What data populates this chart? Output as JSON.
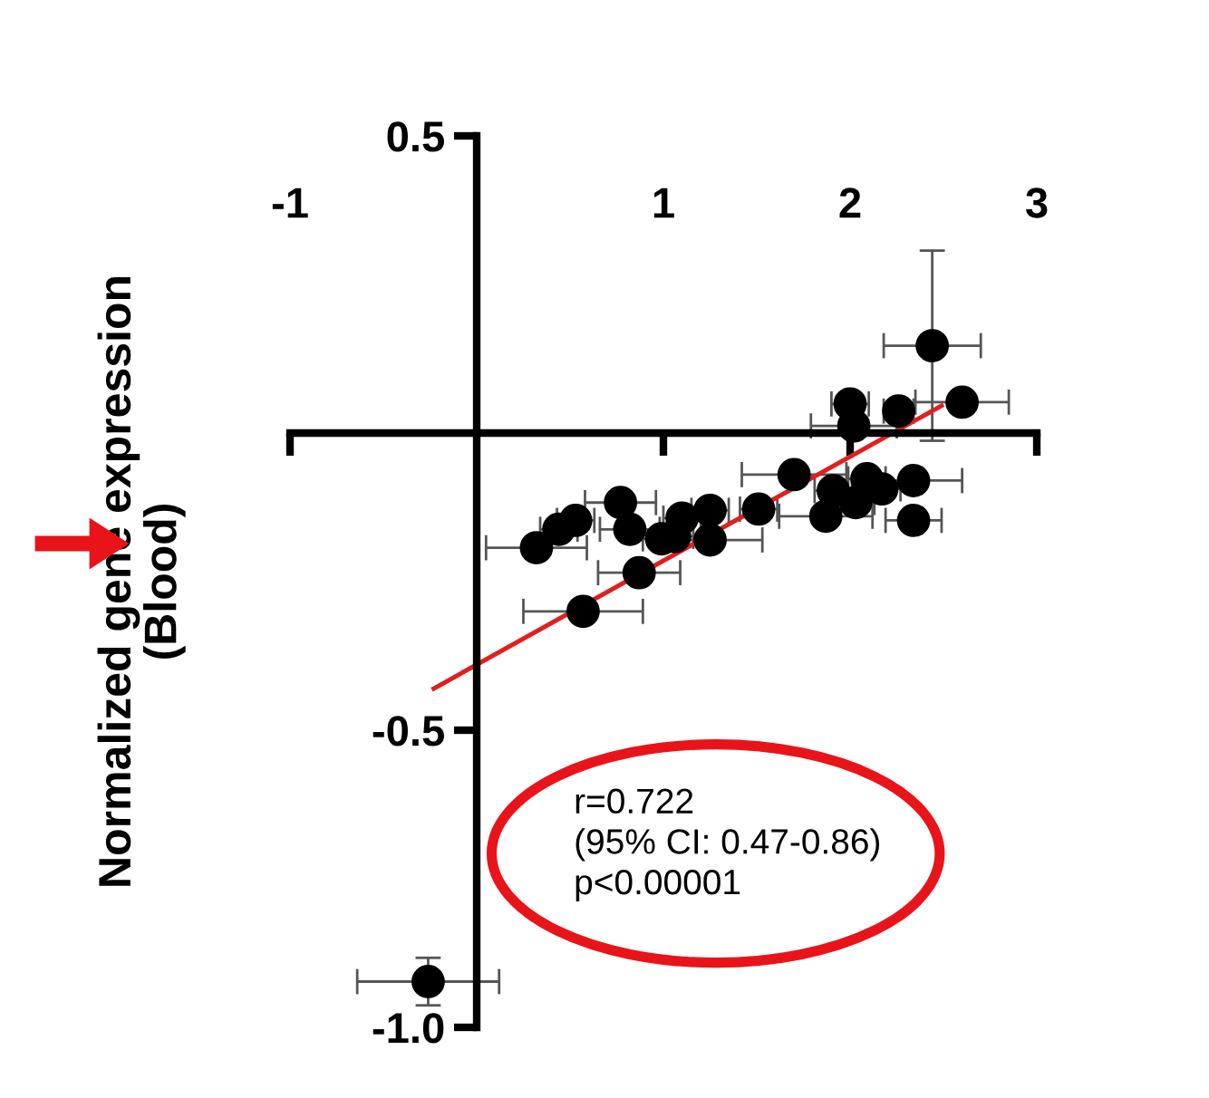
{
  "chart_data": {
    "type": "scatter",
    "ylabel": "Normalized gene expression\n(Blood)",
    "xlim": [
      -1,
      3
    ],
    "xticks": [
      -1,
      1,
      2,
      3
    ],
    "ylim": [
      -1,
      0.5
    ],
    "yticks": [
      0.5,
      -0.5,
      {
        "value": -1,
        "label": "-1.0"
      }
    ],
    "grid": false,
    "marker": "circle",
    "series": [
      {
        "color": "#000000",
        "x": [
          2.44,
          2.6,
          2.0,
          2.02,
          2.26,
          1.7,
          1.91,
          2.09,
          2.17,
          2.34,
          2.03,
          1.87,
          2.34,
          1.51,
          1.25,
          1.25,
          1.1,
          0.99,
          1.06,
          0.82,
          0.77,
          0.53,
          0.44,
          0.32,
          0.87,
          0.57,
          -0.26
        ],
        "values": [
          0.147,
          0.052,
          0.049,
          0.012,
          0.037,
          -0.07,
          -0.097,
          -0.077,
          -0.094,
          -0.08,
          -0.117,
          -0.14,
          -0.147,
          -0.128,
          -0.13,
          -0.18,
          -0.143,
          -0.178,
          -0.174,
          -0.162,
          -0.117,
          -0.147,
          -0.162,
          -0.193,
          -0.235,
          -0.3,
          -0.923
        ],
        "errors": [
          0.16,
          null,
          null,
          null,
          null,
          null,
          null,
          null,
          null,
          null,
          null,
          null,
          null,
          null,
          null,
          null,
          null,
          null,
          null,
          null,
          null,
          null,
          null,
          null,
          null,
          null,
          0.04
        ],
        "xerrors": [
          0.26,
          0.25,
          0.1,
          0.23,
          0.08,
          0.28,
          0.1,
          0.1,
          0.1,
          0.26,
          0.1,
          0.25,
          0.15,
          0.1,
          0.1,
          0.28,
          0.1,
          0.1,
          0.1,
          0.16,
          0.19,
          0.1,
          0.1,
          0.27,
          0.22,
          0.32,
          0.38
        ]
      },
      {
        "type": "line",
        "color": "#e02020",
        "marker": "none",
        "x": [
          -0.23,
          2.49
        ],
        "values": [
          -0.43,
          0.046
        ]
      }
    ],
    "annotations": [
      "r=0.722\n(95% CI: 0.47-0.86)\np<0.00001"
    ]
  }
}
